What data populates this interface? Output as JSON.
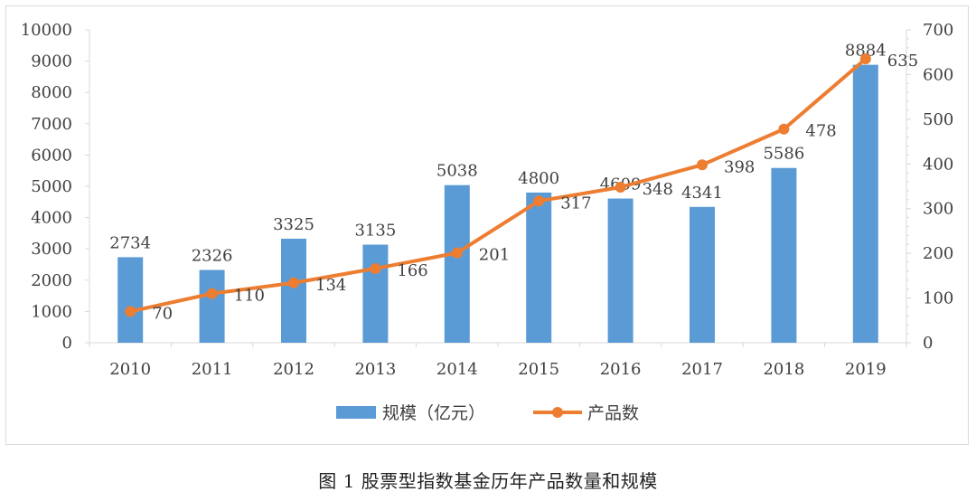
{
  "chart_data": {
    "type": "bar+line",
    "categories": [
      "2010",
      "2011",
      "2012",
      "2013",
      "2014",
      "2015",
      "2016",
      "2017",
      "2018",
      "2019"
    ],
    "series": [
      {
        "name": "规模（亿元）",
        "type": "bar",
        "axis": "left",
        "values": [
          2734,
          2326,
          3325,
          3135,
          5038,
          4800,
          4609,
          4341,
          5586,
          8884
        ],
        "color": "#5b9bd5"
      },
      {
        "name": "产品数",
        "type": "line",
        "axis": "right",
        "values": [
          70,
          110,
          134,
          166,
          201,
          317,
          348,
          398,
          478,
          635
        ],
        "color": "#ed7d31"
      }
    ],
    "ylim_left": [
      0,
      10000
    ],
    "yticks_left": [
      "0",
      "1000",
      "2000",
      "3000",
      "4000",
      "5000",
      "6000",
      "7000",
      "8000",
      "9000",
      "10000"
    ],
    "ylim_right": [
      0,
      700
    ],
    "yticks_right": [
      "0",
      "100",
      "200",
      "300",
      "400",
      "500",
      "600",
      "700"
    ],
    "legend_position": "bottom",
    "grid": false
  },
  "caption": "图 1  股票型指数基金历年产品数量和规模"
}
